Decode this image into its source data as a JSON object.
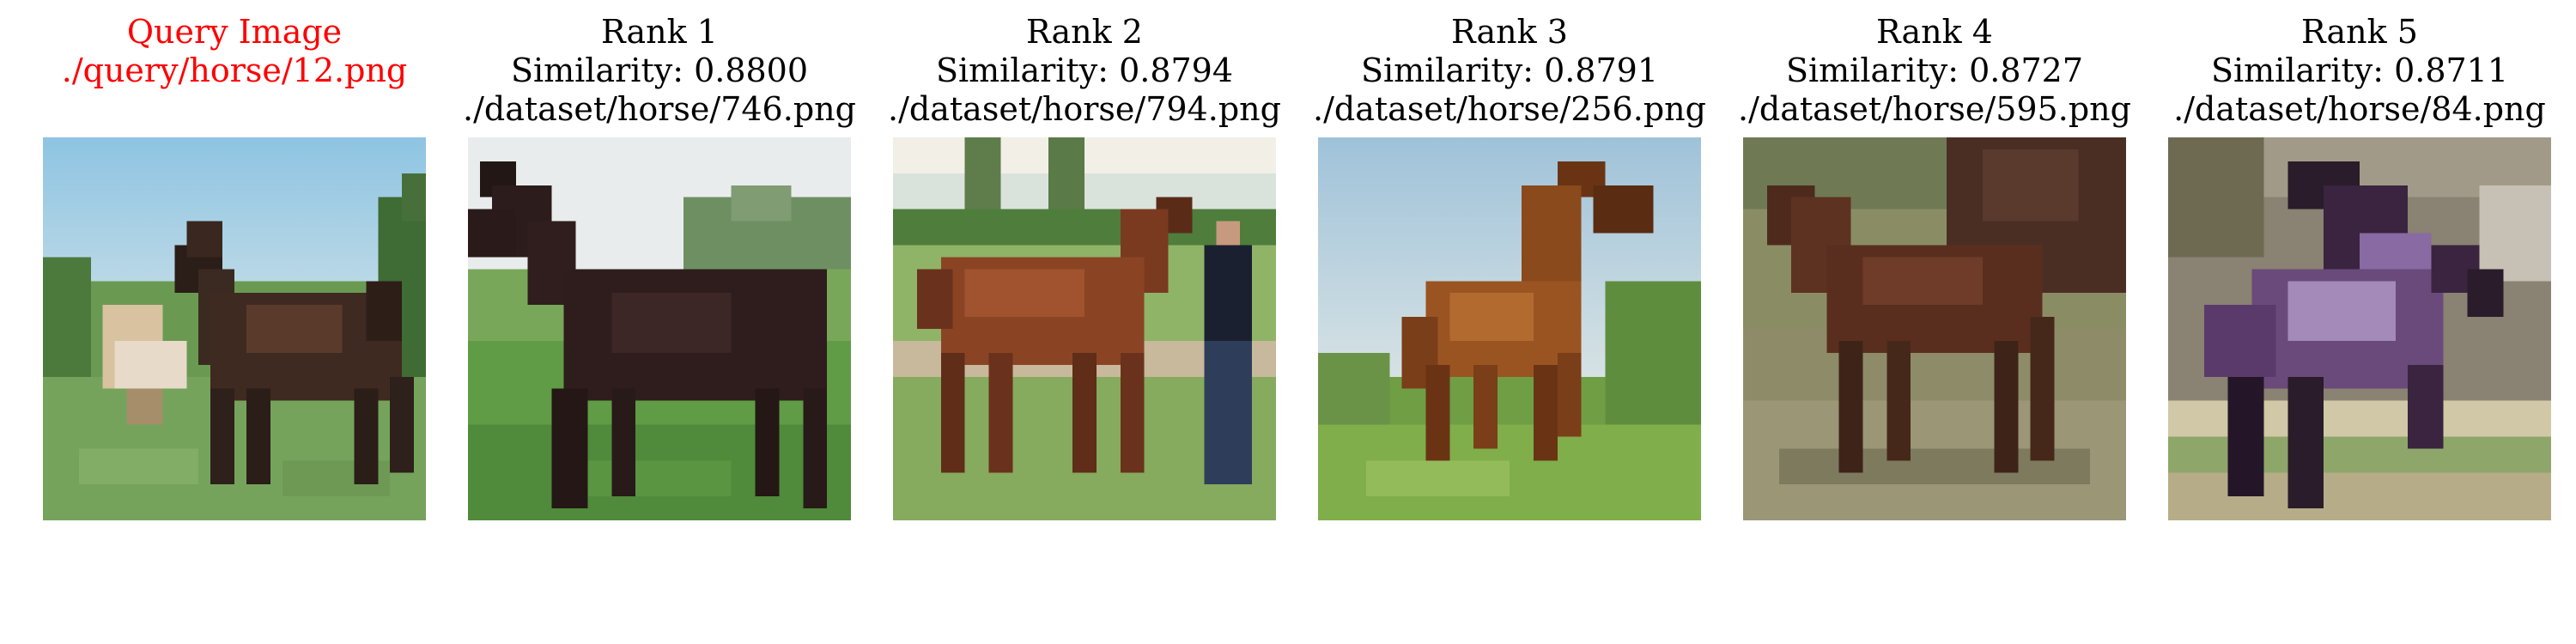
{
  "query": {
    "title": "Query Image",
    "path": "./query/horse/12.png",
    "title_color": "#ff0000"
  },
  "results": [
    {
      "rank_label": "Rank 1",
      "similarity_label": "Similarity: 0.8800",
      "path": "./dataset/horse/746.png"
    },
    {
      "rank_label": "Rank 2",
      "similarity_label": "Similarity: 0.8794",
      "path": "./dataset/horse/794.png"
    },
    {
      "rank_label": "Rank 3",
      "similarity_label": "Similarity: 0.8791",
      "path": "./dataset/horse/256.png"
    },
    {
      "rank_label": "Rank 4",
      "similarity_label": "Similarity: 0.8727",
      "path": "./dataset/horse/595.png"
    },
    {
      "rank_label": "Rank 5",
      "similarity_label": "Similarity: 0.8711",
      "path": "./dataset/horse/84.png"
    }
  ]
}
